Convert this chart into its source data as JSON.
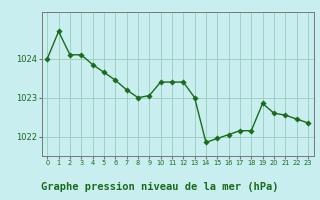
{
  "x": [
    0,
    1,
    2,
    3,
    4,
    5,
    6,
    7,
    8,
    9,
    10,
    11,
    12,
    13,
    14,
    15,
    16,
    17,
    18,
    19,
    20,
    21,
    22,
    23
  ],
  "y": [
    1024.0,
    1024.7,
    1024.1,
    1024.1,
    1023.85,
    1023.65,
    1023.45,
    1023.2,
    1023.0,
    1023.05,
    1023.4,
    1023.4,
    1023.4,
    1023.0,
    1021.85,
    1021.95,
    1022.05,
    1022.15,
    1022.15,
    1022.85,
    1022.6,
    1022.55,
    1022.45,
    1022.35
  ],
  "line_color": "#1a6b1a",
  "marker_color": "#1a6b1a",
  "bg_color": "#c8eef0",
  "plot_bg_color": "#c8eef0",
  "grid_color": "#99ccbb",
  "axis_color": "#777777",
  "xlabel": "Graphe pression niveau de la mer (hPa)",
  "xlabel_fontsize": 7.5,
  "xlabel_color": "#1a6b1a",
  "tick_color": "#1a6b1a",
  "ylim": [
    1021.5,
    1025.2
  ],
  "yticks": [
    1022,
    1023,
    1024
  ],
  "xlim": [
    -0.5,
    23.5
  ],
  "marker_size": 2.8,
  "line_width": 1.0
}
